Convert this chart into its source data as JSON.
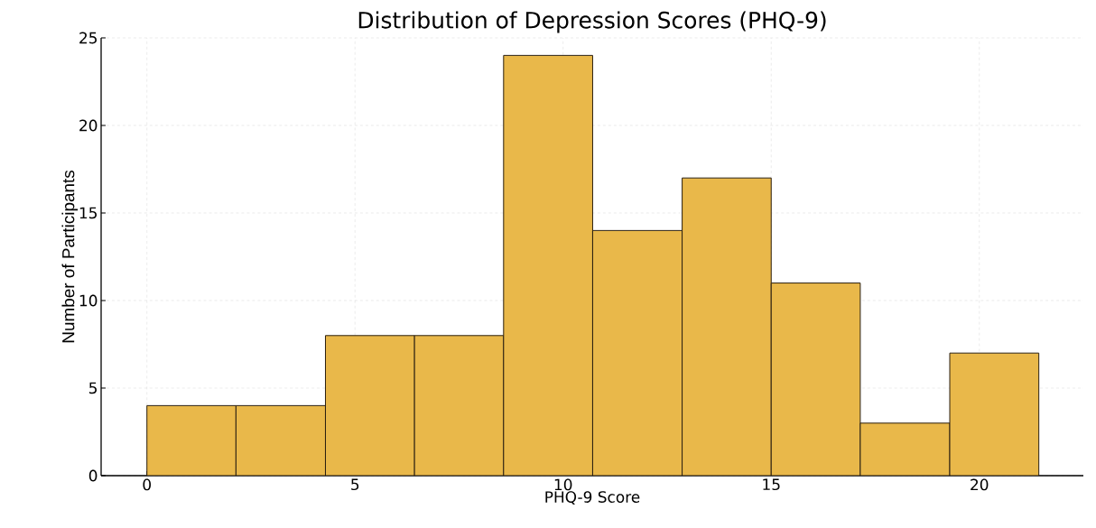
{
  "chart_data": {
    "type": "histogram",
    "title": "Distribution of Depression Scores (PHQ-9)",
    "xlabel": "PHQ-9 Score",
    "ylabel": "Number of Participants",
    "bins": [
      0,
      2.14,
      4.29,
      6.43,
      8.57,
      10.71,
      12.86,
      15,
      17.14,
      19.29,
      21.43
    ],
    "values": [
      4,
      4,
      8,
      8,
      24,
      14,
      17,
      11,
      3,
      7
    ],
    "color": "#e9b84a",
    "xlim": [
      -1.1,
      22.5
    ],
    "ylim": [
      0,
      25
    ],
    "xticks": [
      0,
      5,
      10,
      15,
      20
    ],
    "yticks": [
      0,
      5,
      10,
      15,
      20,
      25
    ],
    "grid": true
  }
}
